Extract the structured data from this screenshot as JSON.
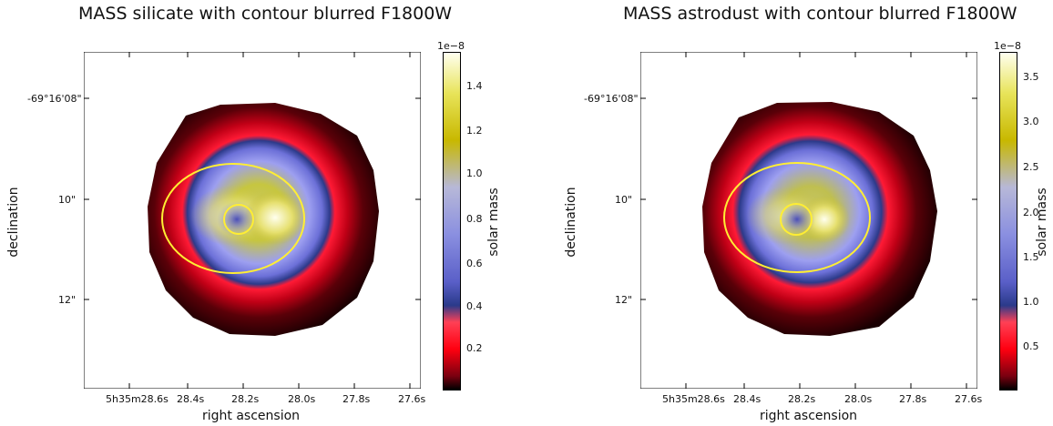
{
  "panels": [
    {
      "title": "MASS silicate with contour blurred F1800W",
      "xlabel": "right ascension",
      "ylabel": "declination",
      "xticks": [
        "5h35m28.6s",
        "28.4s",
        "28.2s",
        "28.0s",
        "27.8s",
        "27.6s"
      ],
      "yticks": [
        "-69°16'08\"",
        "10\"",
        "12\""
      ],
      "colorbar": {
        "label": "solar mass",
        "exponent": "1e−8",
        "ticks": [
          "0.2",
          "0.4",
          "0.6",
          "0.8",
          "1.0",
          "1.2",
          "1.4"
        ]
      }
    },
    {
      "title": "MASS astrodust with contour blurred F1800W",
      "xlabel": "right ascension",
      "ylabel": "declination",
      "xticks": [
        "5h35m28.6s",
        "28.4s",
        "28.2s",
        "28.0s",
        "27.8s",
        "27.6s"
      ],
      "yticks": [
        "-69°16'08\"",
        "10\"",
        "12\""
      ],
      "colorbar": {
        "label": "solar mass",
        "exponent": "1e−8",
        "ticks": [
          "0.5",
          "1.0",
          "1.5",
          "2.0",
          "2.5",
          "3.0",
          "3.5"
        ]
      }
    }
  ],
  "colors": {
    "colormap": [
      "#000000",
      "#7a0010",
      "#ff0010",
      "#ff4055",
      "#2a3a8a",
      "#8a8fe0",
      "#b7b8d8",
      "#c8b800",
      "#fffff0"
    ],
    "contour": "#ffee33"
  }
}
